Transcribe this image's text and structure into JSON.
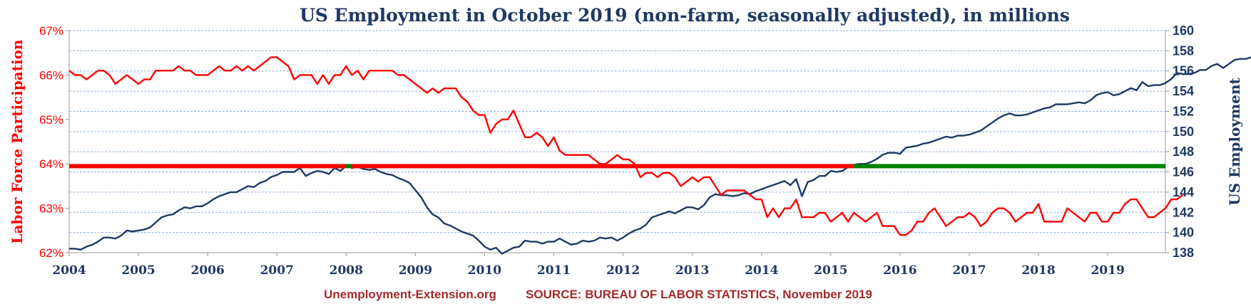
{
  "chart_data": {
    "type": "line",
    "title": "US Employment in October 2019 (non-farm, seasonally adjusted), in millions",
    "left_axis_label": "Labor Force Participation",
    "right_axis_label": "US Employment",
    "left_ylim": [
      62,
      67
    ],
    "right_ylim": [
      138,
      160
    ],
    "left_ticks": [
      "62%",
      "63%",
      "64%",
      "65%",
      "66%",
      "67%"
    ],
    "right_ticks": [
      "138",
      "140",
      "142",
      "144",
      "146",
      "148",
      "150",
      "152",
      "154",
      "156",
      "158",
      "160"
    ],
    "x_range": [
      2004,
      2019.833
    ],
    "x_ticks": [
      "2004",
      "2005",
      "2006",
      "2007",
      "2008",
      "2009",
      "2010",
      "2011",
      "2012",
      "2013",
      "2014",
      "2015",
      "2016",
      "2017",
      "2018",
      "2019"
    ],
    "grid": "horizontal dashed",
    "colors": {
      "title": "#1f3864",
      "participation": "#ff0000",
      "employment": "#1f3864",
      "reference": "#008000",
      "footer": "#a52a2a",
      "grid": "#8fb0d8"
    },
    "series": [
      {
        "name": "Labor Force Participation",
        "axis": "left",
        "start": "2004-01",
        "step": "month",
        "values": [
          66.1,
          66.0,
          66.0,
          65.9,
          66.0,
          66.1,
          66.1,
          66.0,
          65.8,
          65.9,
          66.0,
          65.9,
          65.8,
          65.9,
          65.9,
          66.1,
          66.1,
          66.1,
          66.1,
          66.2,
          66.1,
          66.1,
          66.0,
          66.0,
          66.0,
          66.1,
          66.2,
          66.1,
          66.1,
          66.2,
          66.1,
          66.2,
          66.1,
          66.2,
          66.3,
          66.4,
          66.4,
          66.3,
          66.2,
          65.9,
          66.0,
          66.0,
          66.0,
          65.8,
          66.0,
          65.8,
          66.0,
          66.0,
          66.2,
          66.0,
          66.1,
          65.9,
          66.1,
          66.1,
          66.1,
          66.1,
          66.1,
          66.0,
          66.0,
          65.9,
          65.8,
          65.7,
          65.6,
          65.7,
          65.6,
          65.7,
          65.7,
          65.7,
          65.5,
          65.4,
          65.2,
          65.1,
          65.1,
          64.7,
          64.9,
          65.0,
          65.0,
          65.2,
          64.9,
          64.6,
          64.6,
          64.7,
          64.6,
          64.4,
          64.6,
          64.3,
          64.2,
          64.2,
          64.2,
          64.2,
          64.2,
          64.1,
          64.0,
          64.0,
          64.1,
          64.2,
          64.1,
          64.1,
          64.0,
          63.7,
          63.8,
          63.8,
          63.7,
          63.8,
          63.8,
          63.7,
          63.5,
          63.6,
          63.7,
          63.6,
          63.7,
          63.7,
          63.5,
          63.3,
          63.4,
          63.4,
          63.4,
          63.4,
          63.3,
          63.2,
          63.2,
          62.8,
          63.0,
          62.8,
          63.0,
          63.0,
          63.2,
          62.8,
          62.8,
          62.8,
          62.9,
          62.9,
          62.7,
          62.8,
          62.9,
          62.7,
          62.9,
          62.8,
          62.7,
          62.8,
          62.9,
          62.6,
          62.6,
          62.6,
          62.4,
          62.4,
          62.5,
          62.7,
          62.7,
          62.9,
          63.0,
          62.8,
          62.6,
          62.7,
          62.8,
          62.8,
          62.9,
          62.8,
          62.6,
          62.7,
          62.9,
          63.0,
          63.0,
          62.9,
          62.7,
          62.8,
          62.9,
          62.9,
          63.1,
          62.7,
          62.7,
          62.7,
          62.7,
          63.0,
          62.9,
          62.8,
          62.7,
          62.9,
          62.9,
          62.7,
          62.7,
          62.9,
          62.9,
          63.1,
          63.2,
          63.2,
          63.0,
          62.8,
          62.8,
          62.9,
          63.0,
          63.2,
          63.2,
          63.3
        ]
      },
      {
        "name": "US Employment",
        "axis": "right",
        "start": "2004-01",
        "step": "month",
        "values": [
          138.4,
          138.4,
          138.3,
          138.6,
          138.8,
          139.1,
          139.5,
          139.5,
          139.4,
          139.7,
          140.2,
          140.1,
          140.2,
          140.3,
          140.5,
          141.0,
          141.5,
          141.7,
          141.8,
          142.2,
          142.5,
          142.4,
          142.6,
          142.6,
          142.9,
          143.3,
          143.6,
          143.8,
          144.0,
          144.0,
          144.3,
          144.6,
          144.5,
          144.9,
          145.1,
          145.5,
          145.7,
          146.0,
          146.0,
          146.0,
          146.4,
          145.6,
          145.9,
          146.1,
          146.0,
          145.8,
          146.4,
          146.1,
          146.6,
          146.4,
          146.5,
          146.3,
          146.2,
          146.3,
          146.0,
          145.8,
          145.7,
          145.4,
          145.2,
          144.9,
          144.2,
          143.5,
          142.5,
          141.8,
          141.5,
          140.9,
          140.7,
          140.4,
          140.1,
          139.9,
          139.7,
          139.2,
          138.6,
          138.3,
          138.5,
          137.9,
          138.2,
          138.5,
          138.6,
          139.2,
          139.1,
          139.1,
          138.9,
          139.1,
          139.1,
          139.4,
          139.1,
          138.8,
          138.9,
          139.2,
          139.1,
          139.2,
          139.5,
          139.4,
          139.5,
          139.2,
          139.5,
          139.9,
          140.2,
          140.4,
          140.8,
          141.5,
          141.7,
          141.9,
          142.1,
          141.9,
          142.2,
          142.5,
          142.5,
          142.3,
          142.7,
          143.5,
          143.8,
          143.7,
          143.7,
          143.6,
          143.7,
          143.9,
          143.8,
          144.1,
          144.3,
          144.5,
          144.7,
          144.9,
          145.1,
          144.7,
          145.3,
          143.6,
          145.0,
          145.2,
          145.6,
          145.6,
          146.1,
          146.0,
          146.1,
          146.5,
          146.7,
          146.8,
          146.8,
          147.0,
          147.3,
          147.7,
          147.9,
          147.9,
          147.8,
          148.4,
          148.5,
          148.6,
          148.8,
          148.9,
          149.1,
          149.3,
          149.5,
          149.4,
          149.6,
          149.6,
          149.7,
          149.9,
          150.1,
          150.5,
          150.9,
          151.3,
          151.6,
          151.8,
          151.6,
          151.6,
          151.7,
          151.9,
          152.1,
          152.3,
          152.4,
          152.7,
          152.7,
          152.7,
          152.8,
          152.9,
          152.8,
          153.1,
          153.6,
          153.8,
          153.9,
          153.6,
          153.7,
          154.0,
          154.3,
          154.1,
          154.9,
          154.5,
          154.6,
          154.6,
          154.8,
          155.2,
          155.8,
          155.7,
          155.7,
          155.8,
          156.1,
          156.1,
          156.5,
          156.7,
          156.3,
          156.7,
          157.1,
          157.2,
          157.2,
          157.4,
          157.2,
          157.3,
          157.2,
          157.0,
          157.0,
          157.1,
          157.3,
          157.4,
          157.8,
          158.2,
          158.4,
          158.6
        ]
      },
      {
        "name": "",
        "axis": "left",
        "values": [
          63.95
        ]
      }
    ]
  },
  "footer": {
    "site": "Unemployment-Extension.org",
    "source": "SOURCE: BUREAU OF LABOR STATISTICS, November 2019"
  }
}
